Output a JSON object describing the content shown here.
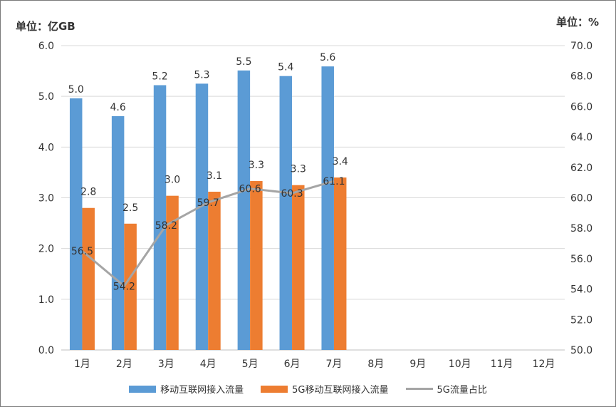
{
  "units": {
    "left": "单位：亿GB",
    "right": "单位：%"
  },
  "colors": {
    "series1": "#5B9BD5",
    "series2": "#ED7D31",
    "series3": "#A5A5A5",
    "grid": "#d9d9d9"
  },
  "legend": [
    "移动互联网接入流量",
    "5G移动互联网接入流量",
    "5G流量占比"
  ],
  "chart_data": {
    "type": "bar",
    "categories": [
      "1月",
      "2月",
      "3月",
      "4月",
      "5月",
      "6月",
      "7月",
      "8月",
      "9月",
      "10月",
      "11月",
      "12月"
    ],
    "series": [
      {
        "name": "移动互联网接入流量",
        "type": "bar",
        "axis": "left",
        "values": [
          5.0,
          4.6,
          5.2,
          5.3,
          5.5,
          5.4,
          5.6,
          null,
          null,
          null,
          null,
          null
        ]
      },
      {
        "name": "5G移动互联网接入流量",
        "type": "bar",
        "axis": "left",
        "values": [
          2.8,
          2.5,
          3.0,
          3.1,
          3.3,
          3.3,
          3.4,
          null,
          null,
          null,
          null,
          null
        ]
      },
      {
        "name": "5G流量占比",
        "type": "line",
        "axis": "right",
        "values": [
          56.5,
          54.2,
          58.2,
          59.7,
          60.6,
          60.3,
          61.1,
          null,
          null,
          null,
          null,
          null
        ]
      }
    ],
    "bar_plot_values": {
      "移动互联网接入流量": [
        4.96,
        4.61,
        5.22,
        5.25,
        5.51,
        5.4,
        5.59
      ],
      "5G移动互联网接入流量": [
        2.8,
        2.49,
        3.04,
        3.12,
        3.33,
        3.25,
        3.4
      ]
    },
    "y_left": {
      "ticks": [
        "0.0",
        "1.0",
        "2.0",
        "3.0",
        "4.0",
        "5.0",
        "6.0"
      ],
      "ylim": [
        0,
        6
      ]
    },
    "y_right": {
      "ticks": [
        "50.0",
        "52.0",
        "54.0",
        "56.0",
        "58.0",
        "60.0",
        "62.0",
        "64.0",
        "66.0",
        "68.0",
        "70.0"
      ],
      "ylim": [
        50,
        70
      ]
    },
    "grid": true,
    "legend_position": "bottom"
  }
}
